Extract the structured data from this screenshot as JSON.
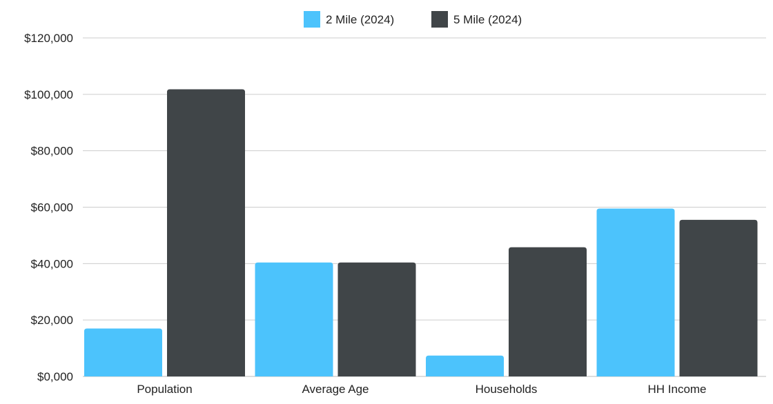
{
  "chart_data": {
    "type": "bar",
    "title": "",
    "xlabel": "",
    "ylabel": "",
    "categories": [
      "Population",
      "Average Age",
      "Households",
      "HH Income"
    ],
    "series": [
      {
        "name": "2 Mile (2024)",
        "color": "#4cc3fc",
        "values": [
          17000,
          40400,
          7400,
          59500
        ]
      },
      {
        "name": "5 Mile (2024)",
        "color": "#404548",
        "values": [
          101800,
          40400,
          45800,
          55500
        ]
      }
    ],
    "ylim": [
      0,
      120000
    ],
    "ytick_labels": [
      "$0,000",
      "$20,000",
      "$40,000",
      "$60,000",
      "$80,000",
      "$100,000",
      "$120,000"
    ],
    "grid": true,
    "legend_position": "top-center"
  }
}
